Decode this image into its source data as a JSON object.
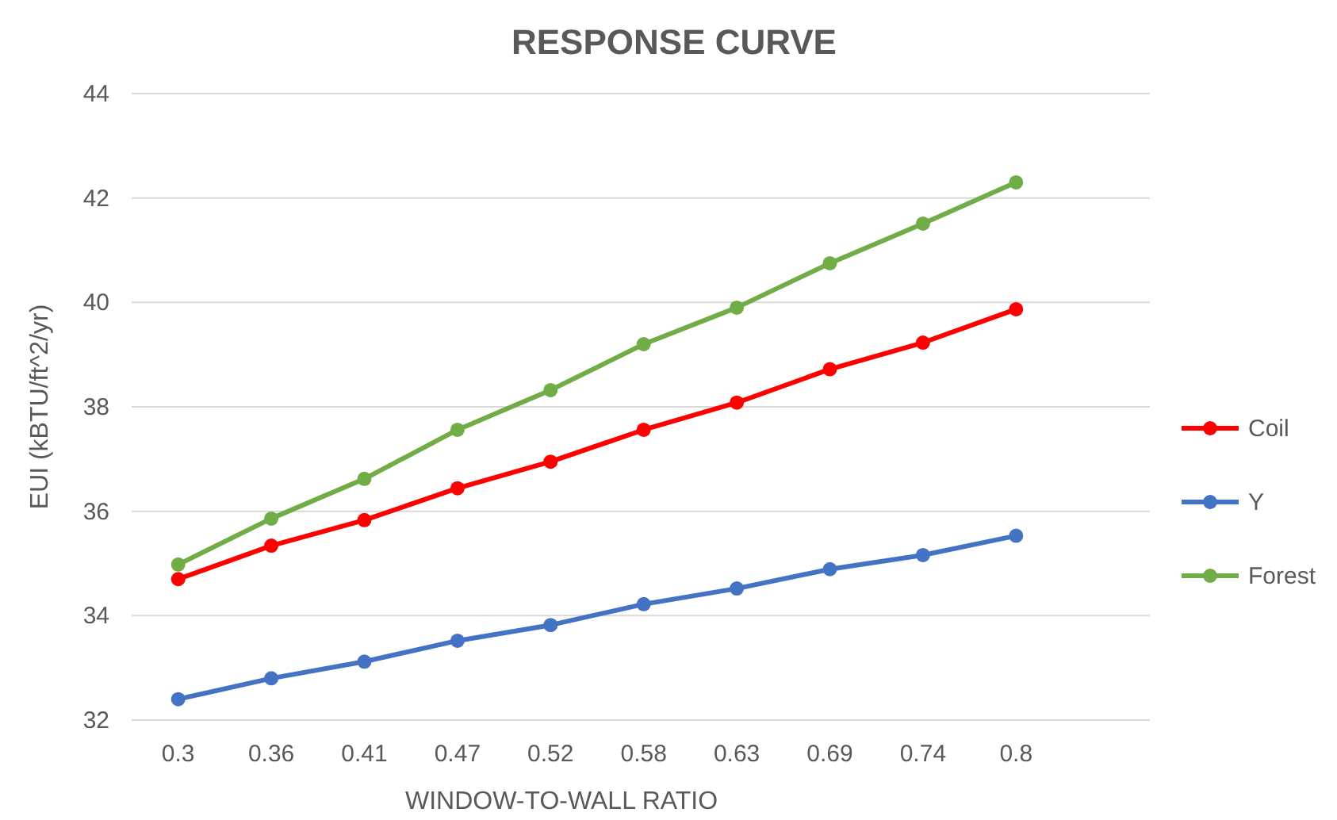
{
  "chart_data": {
    "type": "line",
    "title": "RESPONSE CURVE",
    "xlabel": "WINDOW-TO-WALL RATIO",
    "ylabel": "EUI (kBTU/ft^2/yr)",
    "categories": [
      "0.3",
      "0.36",
      "0.41",
      "0.47",
      "0.52",
      "0.58",
      "0.63",
      "0.69",
      "0.74",
      "0.8"
    ],
    "series": [
      {
        "name": "Coil",
        "color": "#ff0000",
        "values": [
          34.7,
          35.34,
          35.83,
          36.44,
          36.95,
          37.56,
          38.08,
          38.72,
          39.23,
          39.87
        ]
      },
      {
        "name": "Y",
        "color": "#4472c4",
        "values": [
          32.4,
          32.8,
          33.12,
          33.52,
          33.82,
          34.22,
          34.52,
          34.89,
          35.16,
          35.53
        ]
      },
      {
        "name": "Forest",
        "color": "#70ad47",
        "values": [
          34.98,
          35.86,
          36.62,
          37.56,
          38.32,
          39.2,
          39.9,
          40.75,
          41.51,
          42.3
        ]
      }
    ],
    "ylim": [
      32,
      44
    ],
    "yticks": [
      32,
      34,
      36,
      38,
      40,
      42,
      44
    ],
    "grid": "y",
    "legend": "right",
    "marker": "circle",
    "line_style": "solid"
  }
}
